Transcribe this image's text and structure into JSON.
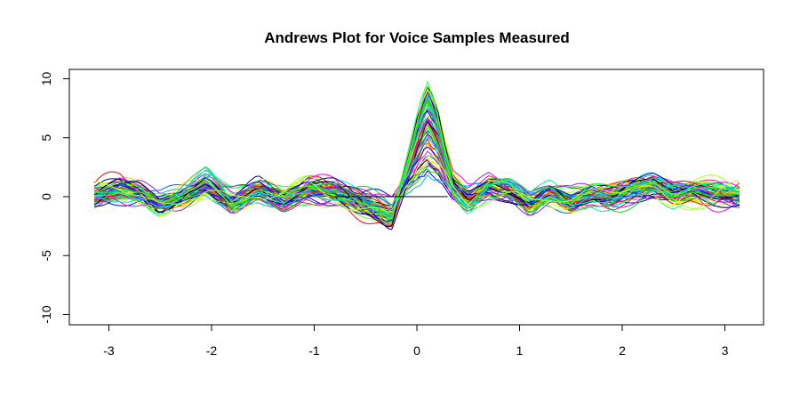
{
  "chart_data": {
    "type": "line",
    "title": "Andrews Plot for Voice Samples Measured",
    "xlabel": "",
    "ylabel": "",
    "xlim": [
      -3.3,
      3.3
    ],
    "ylim": [
      -11,
      11
    ],
    "x_domain": [
      -3.14159,
      3.14159
    ],
    "x_ticks": [
      -3,
      -2,
      -1,
      0,
      1,
      2,
      3
    ],
    "y_ticks": [
      -10,
      -5,
      0,
      5,
      10
    ],
    "grid": false,
    "legend": "none",
    "baseline_y": 0,
    "colors": [
      "#000080",
      "#0000ff",
      "#0066ff",
      "#00b0ff",
      "#00e5ee",
      "#00ff7f",
      "#00ee00",
      "#32cd32",
      "#66ff00",
      "#adff2f",
      "#ffd700",
      "#ffff00",
      "#ff8c00",
      "#ff4500",
      "#ff0000",
      "#ee1289",
      "#ff00ff",
      "#9400d3",
      "#8a2be2",
      "#000000"
    ],
    "envelope": {
      "x": [
        -3.14,
        -2.9,
        -2.7,
        -2.5,
        -2.3,
        -2.05,
        -1.8,
        -1.55,
        -1.3,
        -1.05,
        -0.8,
        -0.6,
        -0.4,
        -0.25,
        -0.1,
        0.0,
        0.1,
        0.2,
        0.35,
        0.5,
        0.7,
        0.9,
        1.1,
        1.3,
        1.5,
        1.7,
        1.9,
        2.1,
        2.3,
        2.5,
        2.7,
        2.9,
        3.14
      ],
      "mean": [
        0.0,
        0.5,
        0.3,
        -0.6,
        0.0,
        1.0,
        -0.5,
        0.6,
        -0.3,
        0.5,
        0.4,
        -0.2,
        -0.8,
        -1.5,
        1.5,
        3.5,
        5.2,
        4.0,
        0.6,
        -0.3,
        0.8,
        0.5,
        -0.5,
        0.3,
        -0.4,
        0.2,
        0.0,
        0.5,
        0.8,
        0.3,
        0.6,
        0.3,
        0.0
      ]
    }
  }
}
